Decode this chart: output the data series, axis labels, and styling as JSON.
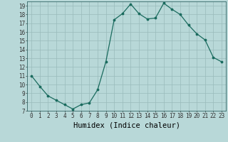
{
  "title": "",
  "xlabel": "Humidex (Indice chaleur)",
  "ylabel": "",
  "x": [
    0,
    1,
    2,
    3,
    4,
    5,
    6,
    7,
    8,
    9,
    10,
    11,
    12,
    13,
    14,
    15,
    16,
    17,
    18,
    19,
    20,
    21,
    22,
    23
  ],
  "y": [
    11,
    9.8,
    8.7,
    8.2,
    7.7,
    7.2,
    7.7,
    7.9,
    9.4,
    12.6,
    17.4,
    18.1,
    19.2,
    18.1,
    17.5,
    17.6,
    19.3,
    18.6,
    18.0,
    16.8,
    15.8,
    15.1,
    13.1,
    12.6
  ],
  "ylim": [
    7,
    19.5
  ],
  "xlim": [
    -0.5,
    23.5
  ],
  "yticks": [
    7,
    8,
    9,
    10,
    11,
    12,
    13,
    14,
    15,
    16,
    17,
    18,
    19
  ],
  "xticks": [
    0,
    1,
    2,
    3,
    4,
    5,
    6,
    7,
    8,
    9,
    10,
    11,
    12,
    13,
    14,
    15,
    16,
    17,
    18,
    19,
    20,
    21,
    22,
    23
  ],
  "line_color": "#1a6b5e",
  "marker_color": "#1a6b5e",
  "bg_color": "#b8d8d8",
  "grid_color": "#99bbbb",
  "spine_color": "#336666",
  "tick_fontsize": 5.5,
  "xlabel_fontsize": 7.5
}
